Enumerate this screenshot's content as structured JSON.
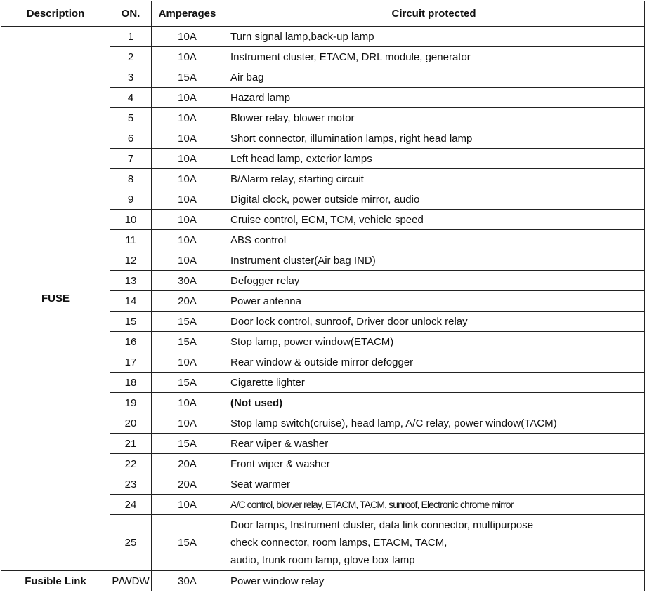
{
  "headers": {
    "description": "Description",
    "on": "ON.",
    "amperages": "Amperages",
    "circuit": "Circuit protected"
  },
  "fuse_label": "FUSE",
  "fuse_rows": [
    {
      "on": "1",
      "amp": "10A",
      "circuit": "Turn signal lamp,back-up lamp"
    },
    {
      "on": "2",
      "amp": "10A",
      "circuit": "Instrument cluster, ETACM, DRL module, generator"
    },
    {
      "on": "3",
      "amp": "15A",
      "circuit": "Air bag"
    },
    {
      "on": "4",
      "amp": "10A",
      "circuit": "Hazard lamp"
    },
    {
      "on": "5",
      "amp": "10A",
      "circuit": "Blower relay, blower motor"
    },
    {
      "on": "6",
      "amp": "10A",
      "circuit": "Short connector, illumination lamps, right head lamp"
    },
    {
      "on": "7",
      "amp": "10A",
      "circuit": "Left head lamp, exterior lamps"
    },
    {
      "on": "8",
      "amp": "10A",
      "circuit": "B/Alarm relay, starting circuit"
    },
    {
      "on": "9",
      "amp": "10A",
      "circuit": "Digital clock, power outside mirror, audio"
    },
    {
      "on": "10",
      "amp": "10A",
      "circuit": "Cruise control, ECM, TCM, vehicle speed"
    },
    {
      "on": "11",
      "amp": "10A",
      "circuit": "ABS control"
    },
    {
      "on": "12",
      "amp": "10A",
      "circuit": "Instrument cluster(Air bag IND)"
    },
    {
      "on": "13",
      "amp": "30A",
      "circuit": "Defogger relay"
    },
    {
      "on": "14",
      "amp": "20A",
      "circuit": "Power antenna"
    },
    {
      "on": "15",
      "amp": "15A",
      "circuit": "Door lock control, sunroof, Driver door unlock relay"
    },
    {
      "on": "16",
      "amp": "15A",
      "circuit": "Stop lamp, power window(ETACM)"
    },
    {
      "on": "17",
      "amp": "10A",
      "circuit": "Rear window & outside mirror defogger"
    },
    {
      "on": "18",
      "amp": "15A",
      "circuit": "Cigarette lighter"
    },
    {
      "on": "19",
      "amp": "10A",
      "circuit": "(Not used)"
    },
    {
      "on": "20",
      "amp": "10A",
      "circuit": "Stop lamp switch(cruise), head lamp, A/C relay, power window(TACM)"
    },
    {
      "on": "21",
      "amp": "15A",
      "circuit": "Rear wiper & washer"
    },
    {
      "on": "22",
      "amp": "20A",
      "circuit": "Front wiper & washer"
    },
    {
      "on": "23",
      "amp": "20A",
      "circuit": "Seat warmer"
    },
    {
      "on": "24",
      "amp": "10A",
      "circuit": "A/C control, blower relay, ETACM, TACM, sunroof, Electronic chrome mirror"
    },
    {
      "on": "25",
      "amp": "15A",
      "circuit_lines": [
        "Door lamps, Instrument cluster, data link connector, multipurpose",
        "check connector, room lamps, ETACM, TACM,",
        "audio, trunk room lamp, glove box lamp"
      ]
    }
  ],
  "fusible_link": {
    "description": "Fusible Link",
    "on": "P/WDW",
    "amp": "30A",
    "circuit": "Power window relay"
  }
}
